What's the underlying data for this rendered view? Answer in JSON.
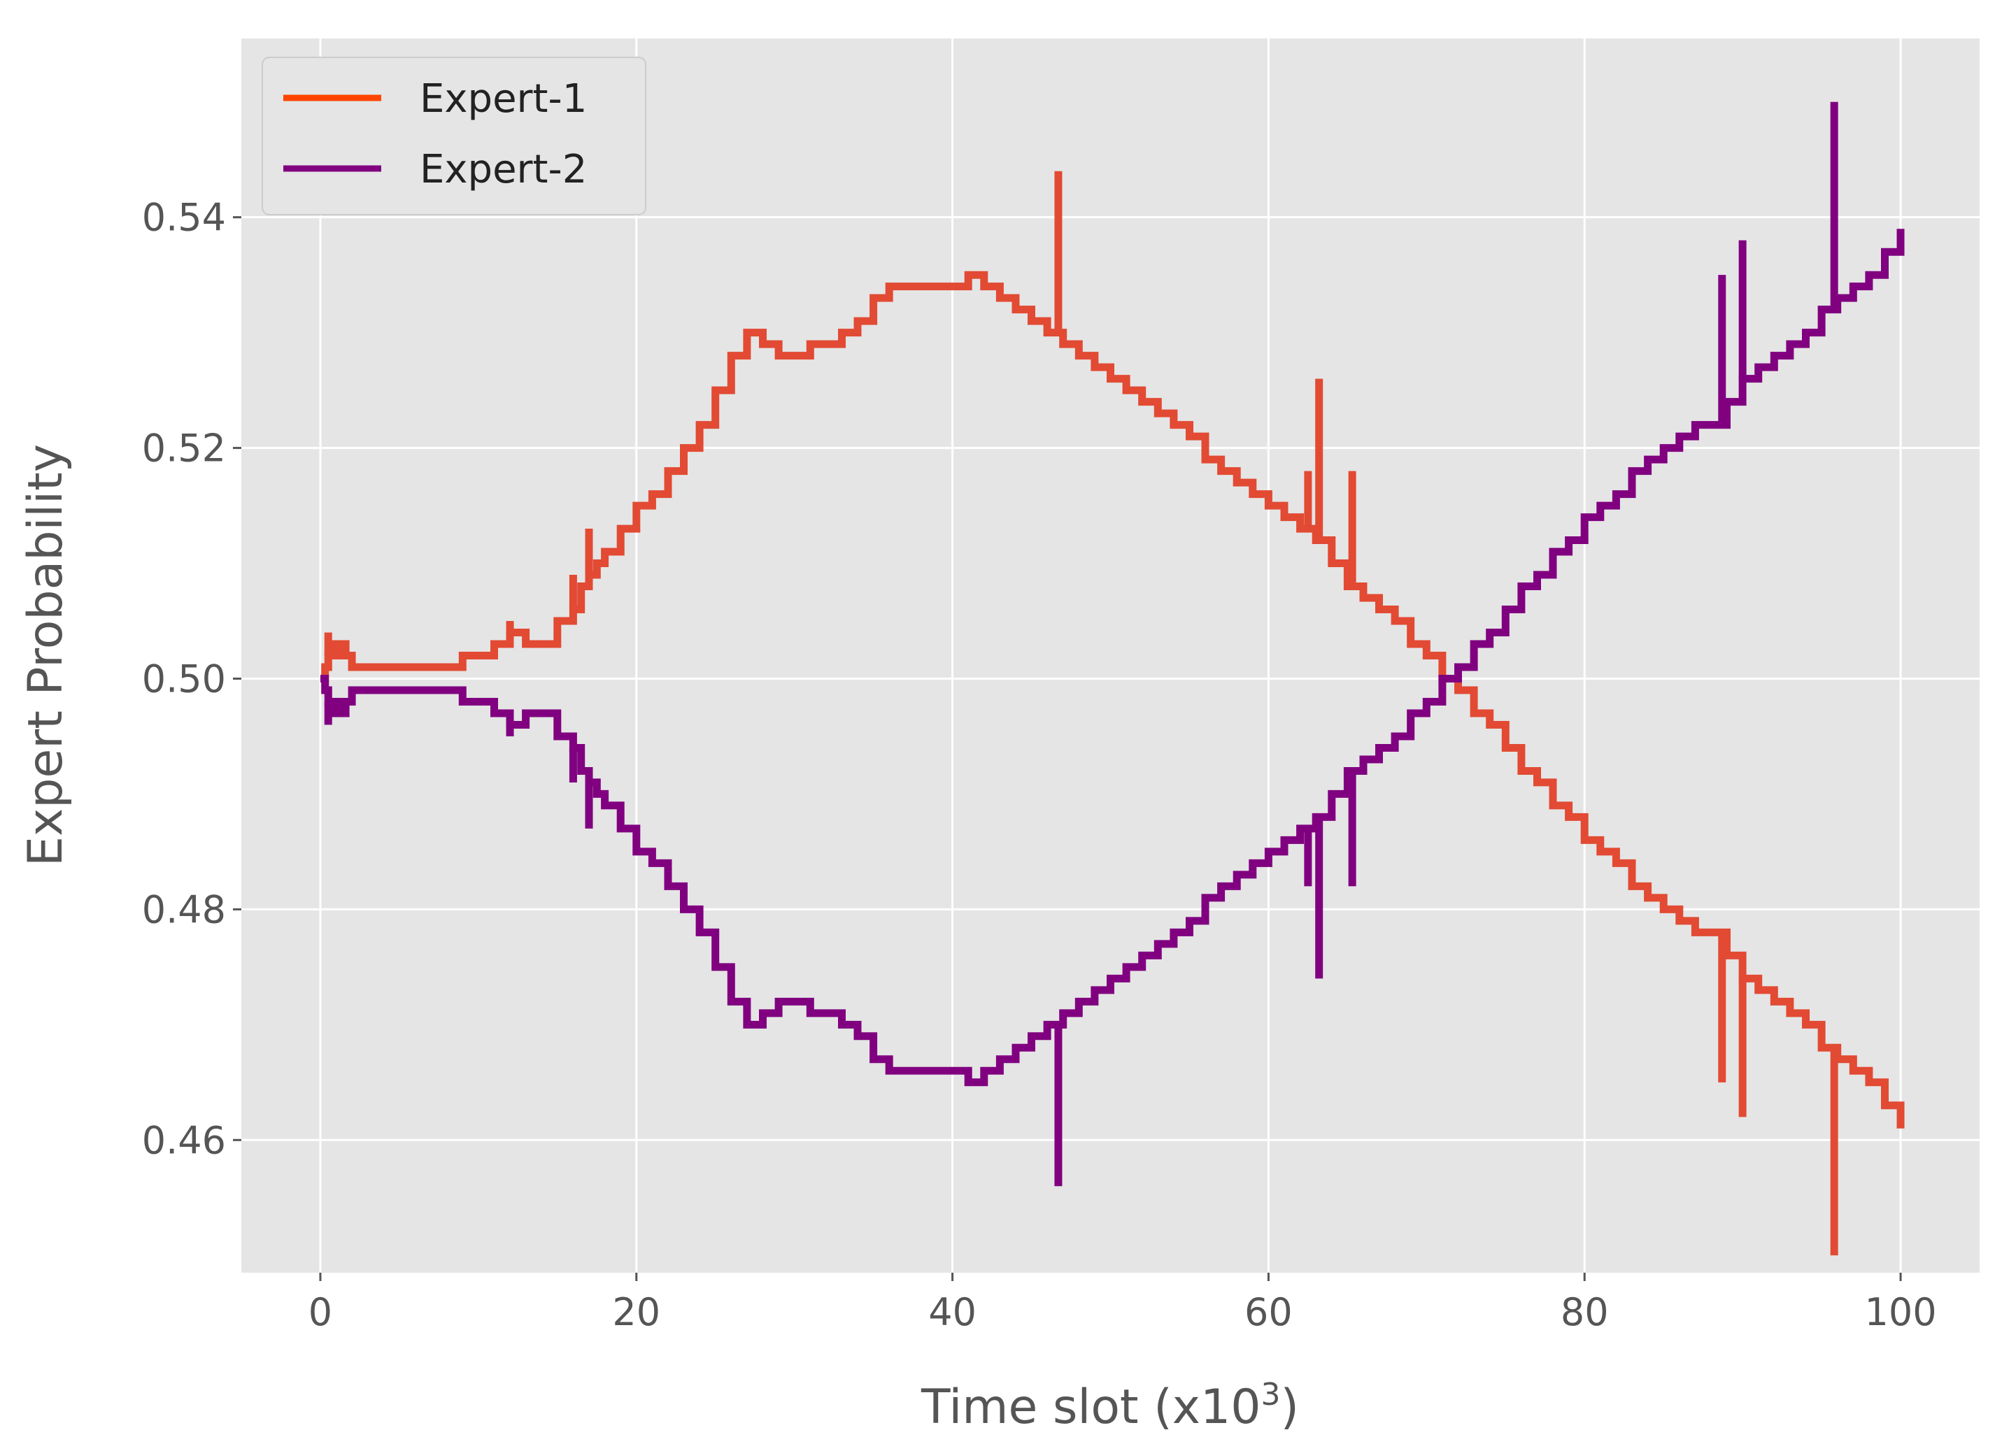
{
  "chart_data": {
    "type": "line",
    "xlabel": "Time slot (x10",
    "xlabel_sup": "3",
    "xlabel_end": ")",
    "ylabel": "Expert Probability",
    "xlim": [
      -5,
      105
    ],
    "ylim": [
      0.4485,
      0.5555
    ],
    "xticks": [
      0,
      20,
      40,
      60,
      80,
      100
    ],
    "yticks": [
      0.46,
      0.48,
      0.5,
      0.52,
      0.54
    ],
    "xtick_labels": [
      "0",
      "20",
      "40",
      "60",
      "80",
      "100"
    ],
    "ytick_labels": [
      "0.46",
      "0.48",
      "0.50",
      "0.52",
      "0.54"
    ],
    "grid": true,
    "legend_position": "top-left",
    "series": [
      {
        "name": "Expert-1",
        "color": "#e24a33",
        "legend_color": "#ff4500",
        "x": [
          0,
          0.3,
          0.5,
          0.8,
          1.0,
          1.3,
          1.6,
          2,
          4,
          5,
          8,
          9,
          10,
          11,
          12,
          13,
          14,
          15,
          16,
          16.5,
          17,
          17.5,
          18,
          19,
          20,
          21,
          22,
          23,
          24,
          25,
          26,
          27,
          28,
          29,
          30,
          31,
          32,
          33,
          34,
          35,
          36,
          37,
          38,
          39,
          40,
          41,
          42,
          43,
          44,
          45,
          46,
          47,
          48,
          49,
          50,
          51,
          52,
          53,
          54,
          55,
          56,
          57,
          58,
          59,
          60,
          61,
          62,
          63,
          64,
          65,
          66,
          67,
          68,
          69,
          70,
          71,
          72,
          73,
          74,
          75,
          76,
          77,
          78,
          79,
          80,
          81,
          82,
          83,
          84,
          85,
          86,
          87,
          88,
          89,
          90,
          91,
          92,
          93,
          94,
          95,
          96,
          97,
          98,
          99,
          100
        ],
        "y": [
          0.5,
          0.501,
          0.502,
          0.503,
          0.502,
          0.503,
          0.502,
          0.501,
          0.501,
          0.501,
          0.501,
          0.502,
          0.502,
          0.503,
          0.504,
          0.503,
          0.503,
          0.505,
          0.506,
          0.508,
          0.509,
          0.51,
          0.511,
          0.513,
          0.515,
          0.516,
          0.518,
          0.52,
          0.522,
          0.525,
          0.528,
          0.53,
          0.529,
          0.528,
          0.528,
          0.529,
          0.529,
          0.53,
          0.531,
          0.533,
          0.534,
          0.534,
          0.534,
          0.534,
          0.534,
          0.535,
          0.534,
          0.533,
          0.532,
          0.531,
          0.53,
          0.529,
          0.528,
          0.527,
          0.526,
          0.525,
          0.524,
          0.523,
          0.522,
          0.521,
          0.519,
          0.518,
          0.517,
          0.516,
          0.515,
          0.514,
          0.513,
          0.512,
          0.51,
          0.508,
          0.507,
          0.506,
          0.505,
          0.503,
          0.502,
          0.5,
          0.499,
          0.497,
          0.496,
          0.494,
          0.492,
          0.491,
          0.489,
          0.488,
          0.486,
          0.485,
          0.484,
          0.482,
          0.481,
          0.48,
          0.479,
          0.478,
          0.478,
          0.476,
          0.474,
          0.473,
          0.472,
          0.471,
          0.47,
          0.468,
          0.467,
          0.466,
          0.465,
          0.463,
          0.461
        ],
        "spikes": [
          {
            "x": 0.5,
            "y": 0.504
          },
          {
            "x": 1.2,
            "y": 0.503
          },
          {
            "x": 12,
            "y": 0.505
          },
          {
            "x": 16,
            "y": 0.509
          },
          {
            "x": 17,
            "y": 0.513
          },
          {
            "x": 46.7,
            "y": 0.544
          },
          {
            "x": 62.5,
            "y": 0.518
          },
          {
            "x": 63.2,
            "y": 0.526
          },
          {
            "x": 65.3,
            "y": 0.518
          },
          {
            "x": 88.7,
            "y": 0.465
          },
          {
            "x": 90,
            "y": 0.462
          },
          {
            "x": 95.8,
            "y": 0.45
          }
        ]
      },
      {
        "name": "Expert-2",
        "color": "#800080",
        "legend_color": "#800080",
        "x": [
          0,
          0.3,
          0.5,
          0.8,
          1.0,
          1.3,
          1.6,
          2,
          4,
          5,
          8,
          9,
          10,
          11,
          12,
          13,
          14,
          15,
          16,
          16.5,
          17,
          17.5,
          18,
          19,
          20,
          21,
          22,
          23,
          24,
          25,
          26,
          27,
          28,
          29,
          30,
          31,
          32,
          33,
          34,
          35,
          36,
          37,
          38,
          39,
          40,
          41,
          42,
          43,
          44,
          45,
          46,
          47,
          48,
          49,
          50,
          51,
          52,
          53,
          54,
          55,
          56,
          57,
          58,
          59,
          60,
          61,
          62,
          63,
          64,
          65,
          66,
          67,
          68,
          69,
          70,
          71,
          72,
          73,
          74,
          75,
          76,
          77,
          78,
          79,
          80,
          81,
          82,
          83,
          84,
          85,
          86,
          87,
          88,
          89,
          90,
          91,
          92,
          93,
          94,
          95,
          96,
          97,
          98,
          99,
          100
        ],
        "y": [
          0.5,
          0.499,
          0.498,
          0.497,
          0.498,
          0.497,
          0.498,
          0.499,
          0.499,
          0.499,
          0.499,
          0.498,
          0.498,
          0.497,
          0.496,
          0.497,
          0.497,
          0.495,
          0.494,
          0.492,
          0.491,
          0.49,
          0.489,
          0.487,
          0.485,
          0.484,
          0.482,
          0.48,
          0.478,
          0.475,
          0.472,
          0.47,
          0.471,
          0.472,
          0.472,
          0.471,
          0.471,
          0.47,
          0.469,
          0.467,
          0.466,
          0.466,
          0.466,
          0.466,
          0.466,
          0.465,
          0.466,
          0.467,
          0.468,
          0.469,
          0.47,
          0.471,
          0.472,
          0.473,
          0.474,
          0.475,
          0.476,
          0.477,
          0.478,
          0.479,
          0.481,
          0.482,
          0.483,
          0.484,
          0.485,
          0.486,
          0.487,
          0.488,
          0.49,
          0.492,
          0.493,
          0.494,
          0.495,
          0.497,
          0.498,
          0.5,
          0.501,
          0.503,
          0.504,
          0.506,
          0.508,
          0.509,
          0.511,
          0.512,
          0.514,
          0.515,
          0.516,
          0.518,
          0.519,
          0.52,
          0.521,
          0.522,
          0.522,
          0.524,
          0.526,
          0.527,
          0.528,
          0.529,
          0.53,
          0.532,
          0.533,
          0.534,
          0.535,
          0.537,
          0.539
        ],
        "spikes": [
          {
            "x": 0.5,
            "y": 0.496
          },
          {
            "x": 1.2,
            "y": 0.497
          },
          {
            "x": 12,
            "y": 0.495
          },
          {
            "x": 16,
            "y": 0.491
          },
          {
            "x": 17,
            "y": 0.487
          },
          {
            "x": 46.7,
            "y": 0.456
          },
          {
            "x": 62.5,
            "y": 0.482
          },
          {
            "x": 63.2,
            "y": 0.474
          },
          {
            "x": 65.3,
            "y": 0.482
          },
          {
            "x": 88.7,
            "y": 0.535
          },
          {
            "x": 90,
            "y": 0.538
          },
          {
            "x": 95.8,
            "y": 0.55
          }
        ]
      }
    ]
  },
  "colors": {
    "plot_background": "#e5e5e5",
    "grid": "#ffffff",
    "text": "#555555"
  }
}
